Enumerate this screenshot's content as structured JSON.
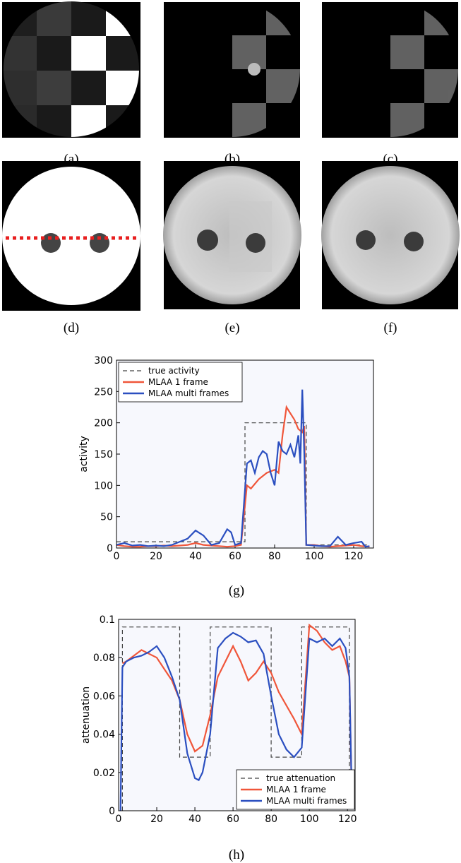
{
  "captions": [
    "(a)",
    "(b)",
    "(c)",
    "(d)",
    "(e)",
    "(f)",
    "(g)",
    "(h)"
  ],
  "chart_data": [
    {
      "type": "line",
      "ylabel": "activity",
      "xlim": [
        0,
        130
      ],
      "ylim": [
        0,
        300
      ],
      "xticks": [
        0,
        20,
        40,
        60,
        80,
        100,
        120
      ],
      "yticks": [
        0,
        50,
        100,
        150,
        200,
        250,
        300
      ],
      "legend": "upper left",
      "series": [
        {
          "name": "true activity",
          "color": "#444444",
          "dashed": true,
          "x": [
            0,
            65,
            65,
            96,
            96,
            128
          ],
          "values": [
            10,
            10,
            200,
            200,
            5,
            5
          ]
        },
        {
          "name": "MLAA 1 frame",
          "color": "#f0563a",
          "dashed": false,
          "x": [
            0,
            4,
            8,
            12,
            16,
            20,
            24,
            28,
            32,
            36,
            40,
            44,
            48,
            52,
            56,
            60,
            63,
            66,
            68,
            72,
            76,
            80,
            82,
            84,
            86,
            88,
            90,
            92,
            94,
            95,
            96,
            100,
            104,
            108,
            112,
            116,
            120,
            124,
            128
          ],
          "values": [
            5,
            3,
            2,
            2,
            3,
            3,
            4,
            3,
            4,
            5,
            8,
            5,
            4,
            3,
            2,
            3,
            5,
            100,
            95,
            110,
            120,
            125,
            120,
            180,
            225,
            215,
            205,
            190,
            185,
            195,
            5,
            5,
            3,
            2,
            3,
            4,
            5,
            3,
            2
          ]
        },
        {
          "name": "MLAA multi frames",
          "color": "#2b4fc0",
          "dashed": false,
          "x": [
            0,
            4,
            8,
            12,
            16,
            20,
            24,
            28,
            32,
            36,
            40,
            44,
            48,
            52,
            56,
            58,
            60,
            63,
            66,
            68,
            70,
            72,
            74,
            76,
            78,
            80,
            82,
            84,
            86,
            88,
            90,
            92,
            93,
            94,
            95,
            96,
            100,
            104,
            108,
            112,
            116,
            120,
            124,
            126,
            128
          ],
          "values": [
            5,
            8,
            4,
            5,
            3,
            4,
            3,
            5,
            10,
            15,
            28,
            20,
            5,
            8,
            30,
            25,
            5,
            8,
            135,
            140,
            120,
            145,
            155,
            150,
            120,
            100,
            170,
            155,
            150,
            165,
            145,
            180,
            135,
            253,
            150,
            5,
            4,
            3,
            3,
            18,
            5,
            8,
            10,
            2,
            3
          ]
        }
      ]
    },
    {
      "type": "line",
      "ylabel": "attenuation",
      "xlim": [
        0,
        124
      ],
      "ylim": [
        0,
        0.1
      ],
      "xticks": [
        0,
        20,
        40,
        60,
        80,
        100,
        120
      ],
      "yticks": [
        0,
        0.02,
        0.04,
        0.06,
        0.08,
        0.1
      ],
      "legend": "lower right",
      "series": [
        {
          "name": "true attenuation",
          "color": "#444444",
          "dashed": true,
          "x": [
            2,
            2,
            32,
            32,
            48,
            48,
            80,
            80,
            96,
            96,
            121,
            121
          ],
          "values": [
            0,
            0.096,
            0.096,
            0.028,
            0.028,
            0.096,
            0.096,
            0.028,
            0.028,
            0.096,
            0.096,
            0.02
          ]
        },
        {
          "name": "MLAA 1 frame",
          "color": "#f0563a",
          "dashed": false,
          "x": [
            2,
            4,
            8,
            12,
            16,
            20,
            24,
            28,
            32,
            36,
            40,
            44,
            48,
            52,
            56,
            60,
            64,
            68,
            72,
            76,
            80,
            84,
            88,
            92,
            96,
            100,
            104,
            108,
            112,
            116,
            119,
            121,
            122
          ],
          "values": [
            0.077,
            0.078,
            0.081,
            0.084,
            0.082,
            0.08,
            0.074,
            0.068,
            0.058,
            0.04,
            0.031,
            0.034,
            0.05,
            0.07,
            0.078,
            0.086,
            0.078,
            0.068,
            0.072,
            0.078,
            0.072,
            0.062,
            0.055,
            0.048,
            0.04,
            0.097,
            0.094,
            0.088,
            0.084,
            0.086,
            0.078,
            0.07,
            0.02
          ]
        },
        {
          "name": "MLAA multi frames",
          "color": "#2b4fc0",
          "dashed": false,
          "x": [
            1,
            2,
            4,
            8,
            12,
            16,
            20,
            24,
            28,
            32,
            36,
            40,
            42,
            44,
            48,
            52,
            56,
            60,
            64,
            68,
            72,
            76,
            80,
            84,
            88,
            92,
            96,
            100,
            104,
            108,
            112,
            116,
            119,
            121,
            122
          ],
          "values": [
            0,
            0.075,
            0.078,
            0.08,
            0.081,
            0.083,
            0.086,
            0.08,
            0.07,
            0.058,
            0.03,
            0.017,
            0.016,
            0.02,
            0.04,
            0.085,
            0.09,
            0.093,
            0.091,
            0.088,
            0.089,
            0.082,
            0.06,
            0.04,
            0.032,
            0.028,
            0.033,
            0.09,
            0.088,
            0.09,
            0.086,
            0.09,
            0.085,
            0.07,
            0.02
          ]
        }
      ]
    }
  ]
}
